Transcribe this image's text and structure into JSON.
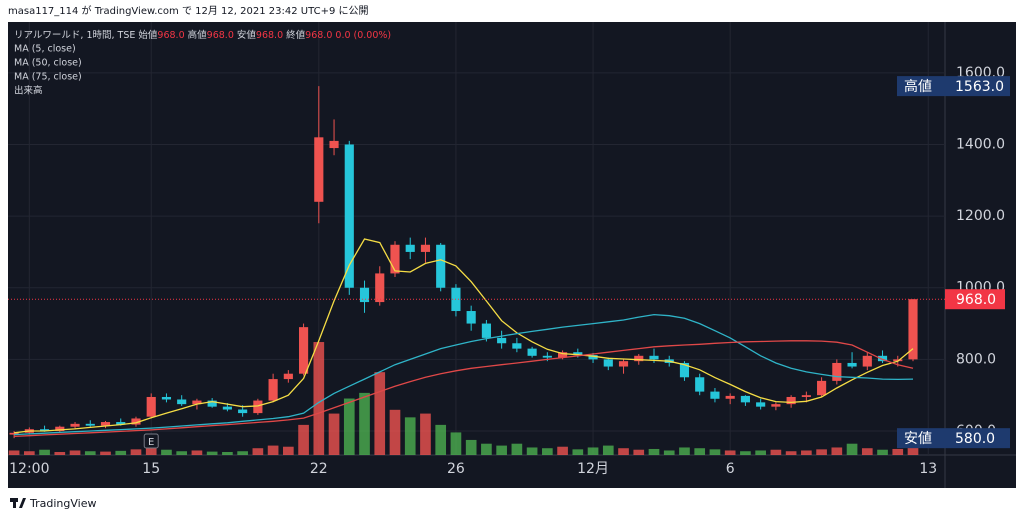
{
  "caption": "masa117_114 が TradingView.com で 12月 12, 2021 23:42 UTC+9 に公開",
  "footer": "TradingView",
  "chart_data": {
    "type": "candlestick",
    "symbol": "リアルワールド, 1時間, TSE",
    "ohlc_fields": [
      {
        "label": "始値",
        "value": "968.0"
      },
      {
        "label": "高値",
        "value": "968.0"
      },
      {
        "label": "安値",
        "value": "968.0"
      },
      {
        "label": "終値",
        "value": "968.0"
      }
    ],
    "change": "0.0 (0.00%)",
    "up_color": "#ef5350",
    "down_color": "#26c6da",
    "xlim": [
      -0.4,
      61.1
    ],
    "xticks": [
      {
        "value": 1,
        "label": "12:00"
      },
      {
        "value": 9,
        "label": "15"
      },
      {
        "value": 20,
        "label": "22"
      },
      {
        "value": 29,
        "label": "26"
      },
      {
        "value": 38,
        "label": "12月"
      },
      {
        "value": 47,
        "label": "6"
      },
      {
        "value": 60,
        "label": "13"
      }
    ],
    "ylim": [
      533,
      1742
    ],
    "yticks": [
      {
        "value": 600,
        "label": "600.0"
      },
      {
        "value": 800,
        "label": "800.0"
      },
      {
        "value": 1000,
        "label": "1000.0"
      },
      {
        "value": 1200,
        "label": "1200.0"
      },
      {
        "value": 1400,
        "label": "1400.0"
      },
      {
        "value": 1600,
        "label": "1600.0"
      }
    ],
    "grid": true,
    "open": [
      590,
      595,
      605,
      600,
      612,
      620,
      615,
      625,
      618,
      640,
      695,
      688,
      675,
      685,
      668,
      660,
      650,
      685,
      745,
      760,
      1240,
      1390,
      1400,
      1000,
      960,
      1040,
      1120,
      1100,
      1120,
      1000,
      935,
      900,
      860,
      845,
      830,
      810,
      805,
      820,
      812,
      800,
      780,
      795,
      810,
      800,
      790,
      750,
      710,
      690,
      698,
      680,
      668,
      675,
      695,
      700,
      740,
      790,
      780,
      810,
      795,
      800
    ],
    "high": [
      600,
      610,
      615,
      615,
      625,
      630,
      628,
      635,
      640,
      705,
      705,
      700,
      690,
      692,
      678,
      672,
      690,
      760,
      770,
      900,
      1563,
      1470,
      1410,
      1020,
      1060,
      1130,
      1140,
      1140,
      1125,
      1010,
      950,
      910,
      880,
      860,
      835,
      820,
      825,
      830,
      818,
      805,
      800,
      815,
      830,
      810,
      795,
      760,
      720,
      705,
      700,
      690,
      680,
      700,
      710,
      750,
      800,
      820,
      820,
      825,
      810,
      968
    ],
    "low": [
      580,
      590,
      598,
      595,
      605,
      612,
      608,
      615,
      612,
      635,
      680,
      670,
      660,
      665,
      655,
      640,
      645,
      680,
      735,
      755,
      1180,
      1370,
      980,
      930,
      950,
      1030,
      1080,
      1070,
      990,
      920,
      880,
      850,
      830,
      820,
      805,
      795,
      800,
      805,
      790,
      770,
      760,
      785,
      790,
      780,
      740,
      700,
      680,
      675,
      670,
      660,
      658,
      665,
      680,
      695,
      730,
      775,
      770,
      790,
      780,
      795
    ],
    "close": [
      595,
      605,
      600,
      612,
      620,
      615,
      625,
      618,
      635,
      695,
      688,
      675,
      685,
      668,
      660,
      650,
      685,
      745,
      760,
      890,
      1420,
      1410,
      1000,
      960,
      1040,
      1120,
      1100,
      1120,
      1000,
      935,
      900,
      860,
      845,
      830,
      810,
      805,
      820,
      812,
      800,
      780,
      795,
      810,
      800,
      790,
      750,
      710,
      690,
      698,
      680,
      668,
      675,
      695,
      700,
      740,
      790,
      780,
      810,
      795,
      800,
      968
    ],
    "series": [
      {
        "name": "MA (5, close)",
        "color": "#f5dd45",
        "values": [
          595,
          600,
          600,
          603,
          606,
          610,
          614,
          618,
          623,
          637,
          650,
          662,
          675,
          682,
          675,
          668,
          670,
          682,
          700,
          747,
          852,
          963,
          1063,
          1136,
          1126,
          1047,
          1044,
          1068,
          1078,
          1061,
          1017,
          963,
          908,
          874,
          849,
          828,
          816,
          813,
          809,
          803,
          801,
          799,
          797,
          795,
          785,
          771,
          749,
          730,
          710,
          693,
          682,
          680,
          683,
          695,
          720,
          743,
          764,
          783,
          795,
          830
        ]
      },
      {
        "name": "MA (50, close)",
        "color": "#2fb4c8",
        "values": [
          590,
          592,
          594,
          596,
          598,
          600,
          602,
          604,
          606,
          608,
          611,
          614,
          617,
          620,
          623,
          627,
          631,
          635,
          640,
          650,
          680,
          705,
          725,
          745,
          765,
          785,
          800,
          815,
          830,
          840,
          850,
          858,
          865,
          872,
          878,
          884,
          890,
          895,
          900,
          905,
          910,
          918,
          925,
          922,
          915,
          900,
          880,
          860,
          835,
          810,
          790,
          775,
          765,
          758,
          752,
          750,
          748,
          745,
          744,
          745
        ]
      },
      {
        "name": "MA (75, close)",
        "color": "#e04848",
        "values": [
          585,
          587,
          589,
          591,
          593,
          595,
          597,
          599,
          601,
          603,
          606,
          609,
          612,
          615,
          618,
          621,
          624,
          627,
          631,
          636,
          650,
          665,
          680,
          695,
          710,
          725,
          738,
          750,
          760,
          768,
          775,
          780,
          785,
          790,
          795,
          800,
          805,
          810,
          815,
          820,
          825,
          830,
          835,
          838,
          840,
          842,
          845,
          847,
          849,
          850,
          851,
          852,
          852,
          851,
          848,
          840,
          820,
          800,
          785,
          775
        ]
      }
    ],
    "volume": {
      "name": "出来高",
      "up_color": "#ef5350",
      "down_color": "#4caf50",
      "ylim": [
        0,
        1150
      ],
      "values": [
        12,
        10,
        14,
        8,
        12,
        10,
        9,
        11,
        15,
        30,
        14,
        10,
        12,
        9,
        8,
        10,
        18,
        25,
        22,
        80,
        300,
        110,
        150,
        165,
        220,
        120,
        100,
        110,
        80,
        60,
        40,
        30,
        25,
        30,
        20,
        18,
        22,
        15,
        20,
        25,
        18,
        14,
        16,
        12,
        20,
        18,
        15,
        12,
        10,
        12,
        14,
        10,
        12,
        15,
        20,
        30,
        18,
        14,
        16,
        50
      ]
    },
    "high_marker": {
      "label": "高値",
      "value": 1563,
      "value_label": "1563.0"
    },
    "low_marker": {
      "label": "安値",
      "value": 580,
      "value_label": "580.0"
    },
    "last_price": {
      "value": 968,
      "label": "968.0",
      "color": "#f23645"
    },
    "events": [
      {
        "index": 9,
        "label": "E"
      }
    ]
  }
}
